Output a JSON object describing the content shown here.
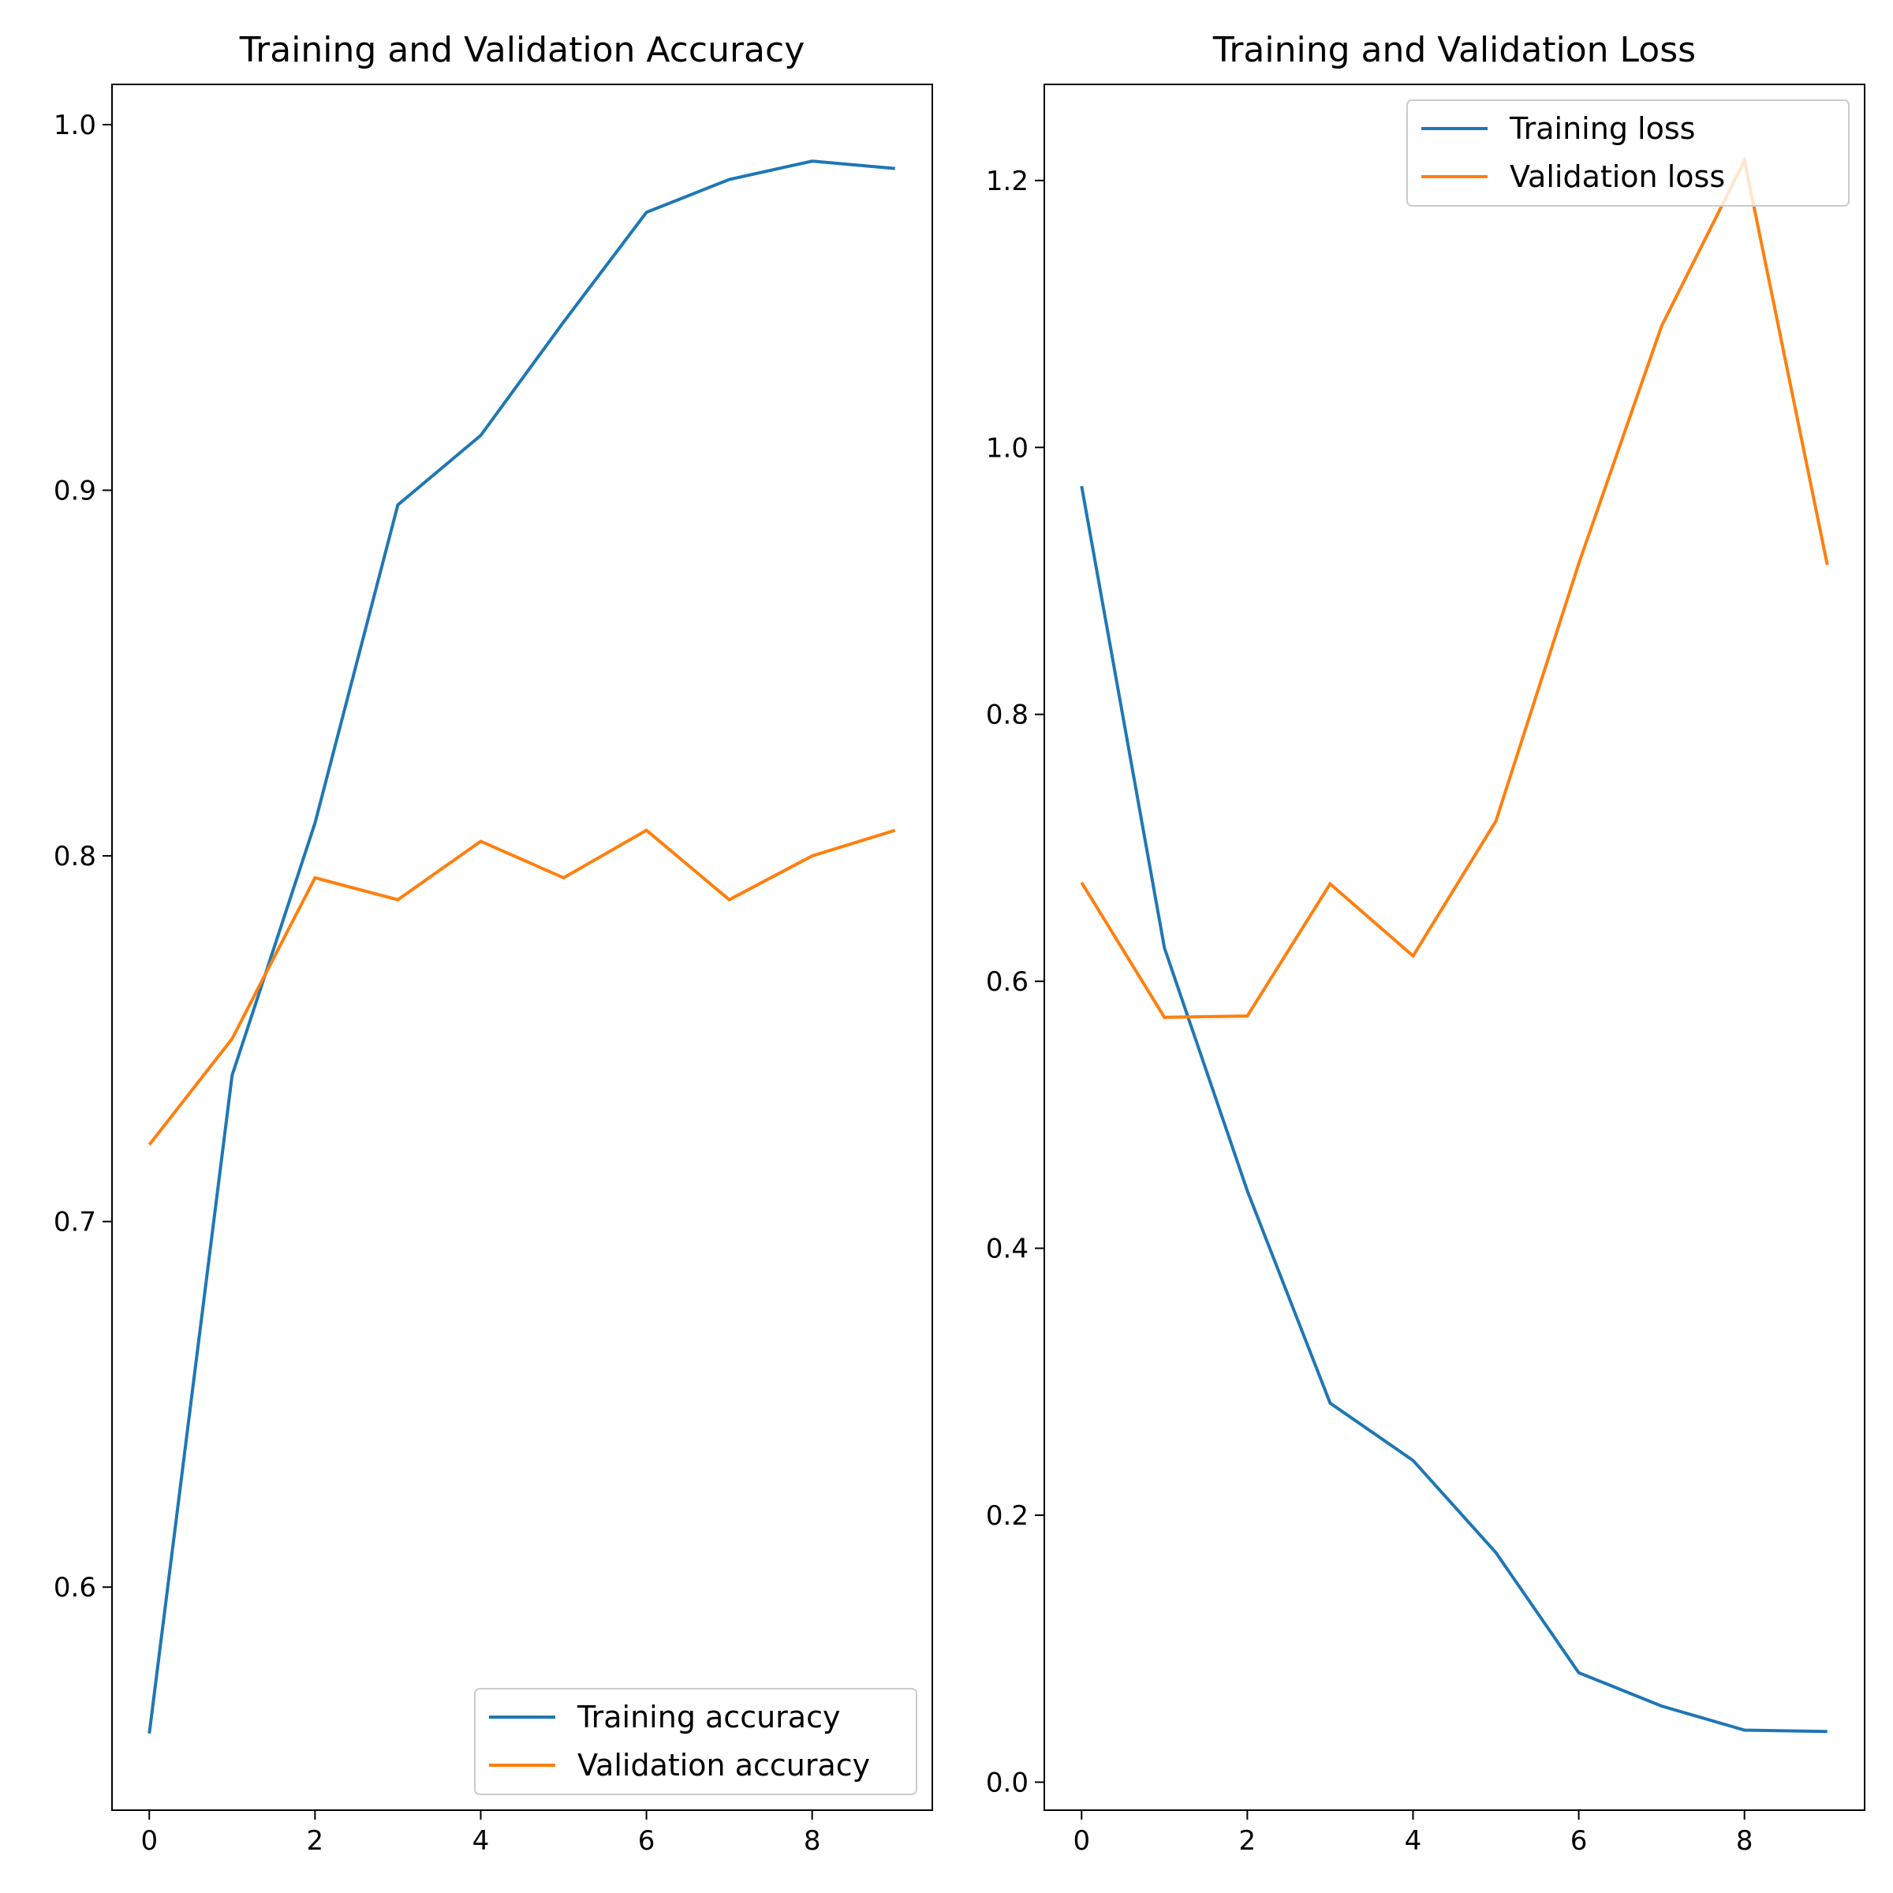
{
  "chart_data": [
    {
      "type": "line",
      "title": "Training and Validation Accuracy",
      "xlabel": "",
      "ylabel": "",
      "x": [
        0,
        1,
        2,
        3,
        4,
        5,
        6,
        7,
        8,
        9
      ],
      "xlim": [
        -0.45,
        9.45
      ],
      "ylim": [
        0.539,
        1.011
      ],
      "xticks": [
        0,
        2,
        4,
        6,
        8
      ],
      "xtick_labels": [
        "0",
        "2",
        "4",
        "6",
        "8"
      ],
      "yticks": [
        0.6,
        0.7,
        0.8,
        0.9,
        1.0
      ],
      "ytick_labels": [
        "0.6",
        "0.7",
        "0.8",
        "0.9",
        "1.0"
      ],
      "grid": false,
      "legend_position": "lower-right",
      "series": [
        {
          "name": "Training accuracy",
          "color": "#1f77b4",
          "values": [
            0.56,
            0.74,
            0.809,
            0.896,
            0.915,
            0.946,
            0.976,
            0.985,
            0.99,
            0.988
          ]
        },
        {
          "name": "Validation accuracy",
          "color": "#ff7f0e",
          "values": [
            0.721,
            0.75,
            0.794,
            0.788,
            0.804,
            0.794,
            0.807,
            0.788,
            0.8,
            0.807
          ]
        }
      ]
    },
    {
      "type": "line",
      "title": "Training and Validation Loss",
      "xlabel": "",
      "ylabel": "",
      "x": [
        0,
        1,
        2,
        3,
        4,
        5,
        6,
        7,
        8,
        9
      ],
      "xlim": [
        -0.45,
        9.45
      ],
      "ylim": [
        -0.021,
        1.272
      ],
      "xticks": [
        0,
        2,
        4,
        6,
        8
      ],
      "xtick_labels": [
        "0",
        "2",
        "4",
        "6",
        "8"
      ],
      "yticks": [
        0.0,
        0.2,
        0.4,
        0.6,
        0.8,
        1.0,
        1.2
      ],
      "ytick_labels": [
        "0.0",
        "0.2",
        "0.4",
        "0.6",
        "0.8",
        "1.0",
        "1.2"
      ],
      "grid": false,
      "legend_position": "upper-right",
      "series": [
        {
          "name": "Training loss",
          "color": "#1f77b4",
          "values": [
            0.971,
            0.625,
            0.443,
            0.284,
            0.241,
            0.172,
            0.082,
            0.057,
            0.039,
            0.038
          ]
        },
        {
          "name": "Validation loss",
          "color": "#ff7f0e",
          "values": [
            0.674,
            0.573,
            0.574,
            0.673,
            0.619,
            0.72,
            0.913,
            1.091,
            1.215,
            0.912
          ]
        }
      ]
    }
  ]
}
